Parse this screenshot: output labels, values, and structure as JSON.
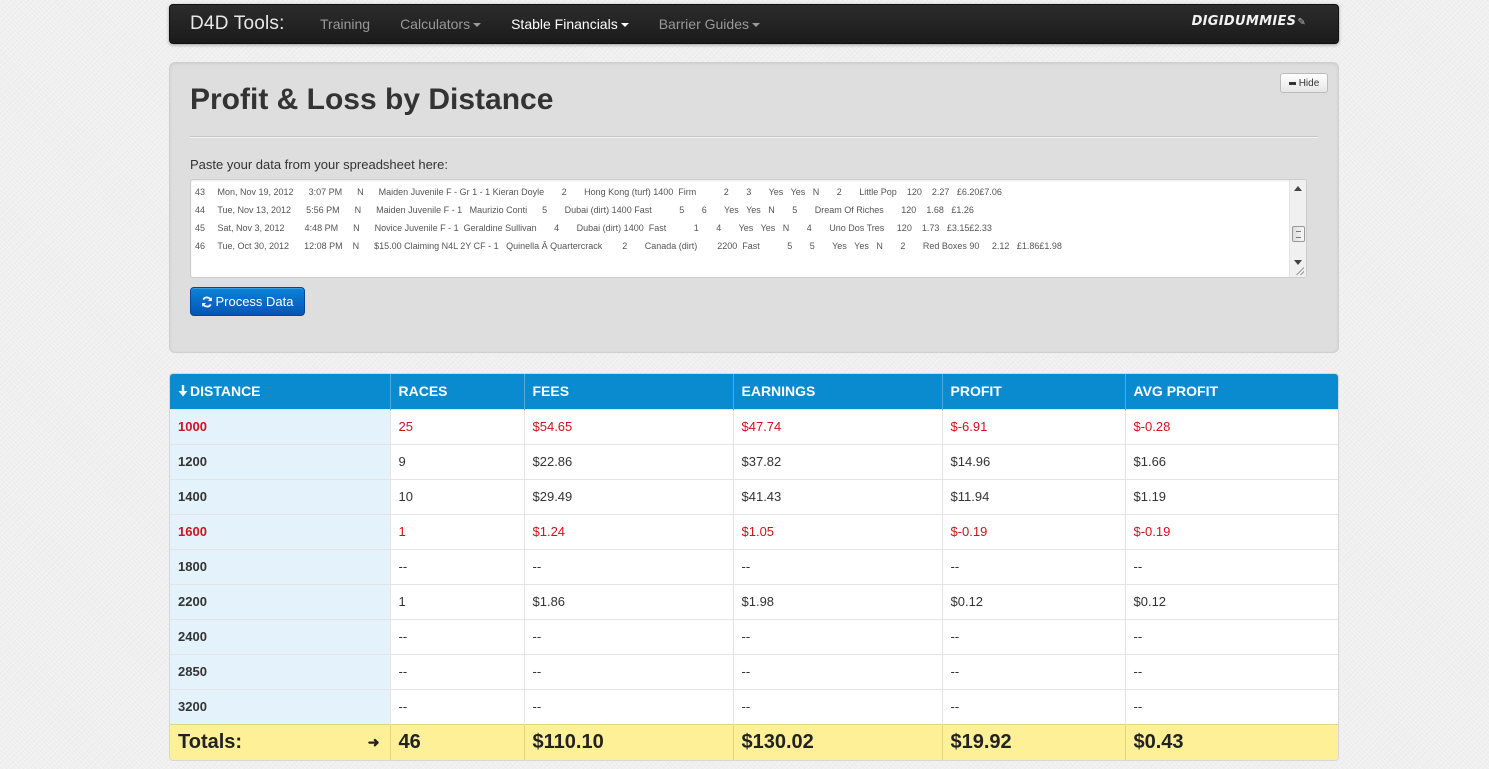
{
  "navbar": {
    "brand": "D4D Tools:",
    "items": [
      {
        "label": "Training",
        "dropdown": false,
        "active": false
      },
      {
        "label": "Calculators",
        "dropdown": true,
        "active": false
      },
      {
        "label": "Stable Financials",
        "dropdown": true,
        "active": true
      },
      {
        "label": "Barrier Guides",
        "dropdown": true,
        "active": false
      }
    ],
    "logo": "DIGIDUMMIES"
  },
  "hero": {
    "title": "Profit & Loss by Distance",
    "hide_label": "Hide",
    "paste_label": "Paste your data from your spreadsheet here:",
    "paste_lines": [
      "43     Mon, Nov 19, 2012      3:07 PM      N      Maiden Juvenile F - Gr 1 - 1 Kieran Doyle       2       Hong Kong (turf) 1400  Firm           2       3       Yes   Yes   N       2       Little Pop    120    2.27   £6.20£7.06",
      "44     Tue, Nov 13, 2012      5:56 PM      N      Maiden Juvenile F - 1   Maurizio Conti      5       Dubai (dirt) 1400 Fast           5       6       Yes   Yes   N       5       Dream Of Riches       120    1.68   £1.26",
      "45     Sat, Nov 3, 2012        4:48 PM      N      Novice Juvenile F - 1  Geraldine Sullivan       4       Dubai (dirt) 1400  Fast           1       4       Yes   Yes   N       4       Uno Dos Tres     120    1.73   £3.15£2.33",
      "46     Tue, Oct 30, 2012      12:08 PM    N      $15.00 Claiming N4L 2Y CF - 1   Quinella Â Quartercrack        2       Canada (dirt)        2200  Fast           5       5       Yes   Yes   N       2       Red Boxes 90     2.12   £1.86£1.98"
    ],
    "process_label": "Process Data"
  },
  "table": {
    "headers": [
      "DISTANCE",
      "RACES",
      "FEES",
      "EARNINGS",
      "PROFIT",
      "AVG PROFIT"
    ],
    "rows": [
      {
        "distance": "1000",
        "races": "25",
        "fees": "$54.65",
        "earnings": "$47.74",
        "profit": "$-6.91",
        "avg": "$-0.28",
        "negative": true
      },
      {
        "distance": "1200",
        "races": "9",
        "fees": "$22.86",
        "earnings": "$37.82",
        "profit": "$14.96",
        "avg": "$1.66",
        "negative": false
      },
      {
        "distance": "1400",
        "races": "10",
        "fees": "$29.49",
        "earnings": "$41.43",
        "profit": "$11.94",
        "avg": "$1.19",
        "negative": false
      },
      {
        "distance": "1600",
        "races": "1",
        "fees": "$1.24",
        "earnings": "$1.05",
        "profit": "$-0.19",
        "avg": "$-0.19",
        "negative": true
      },
      {
        "distance": "1800",
        "races": "--",
        "fees": "--",
        "earnings": "--",
        "profit": "--",
        "avg": "--",
        "negative": false
      },
      {
        "distance": "2200",
        "races": "1",
        "fees": "$1.86",
        "earnings": "$1.98",
        "profit": "$0.12",
        "avg": "$0.12",
        "negative": false
      },
      {
        "distance": "2400",
        "races": "--",
        "fees": "--",
        "earnings": "--",
        "profit": "--",
        "avg": "--",
        "negative": false
      },
      {
        "distance": "2850",
        "races": "--",
        "fees": "--",
        "earnings": "--",
        "profit": "--",
        "avg": "--",
        "negative": false
      },
      {
        "distance": "3200",
        "races": "--",
        "fees": "--",
        "earnings": "--",
        "profit": "--",
        "avg": "--",
        "negative": false
      }
    ],
    "totals": {
      "label": "Totals:",
      "races": "46",
      "fees": "$110.10",
      "earnings": "$130.02",
      "profit": "$19.92",
      "avg": "$0.43"
    }
  },
  "colors": {
    "header_blue": "#0a8bd0",
    "negative_red": "#d0121a",
    "totals_yellow": "#fdf096",
    "distance_col_bg": "#e4f3fb"
  }
}
